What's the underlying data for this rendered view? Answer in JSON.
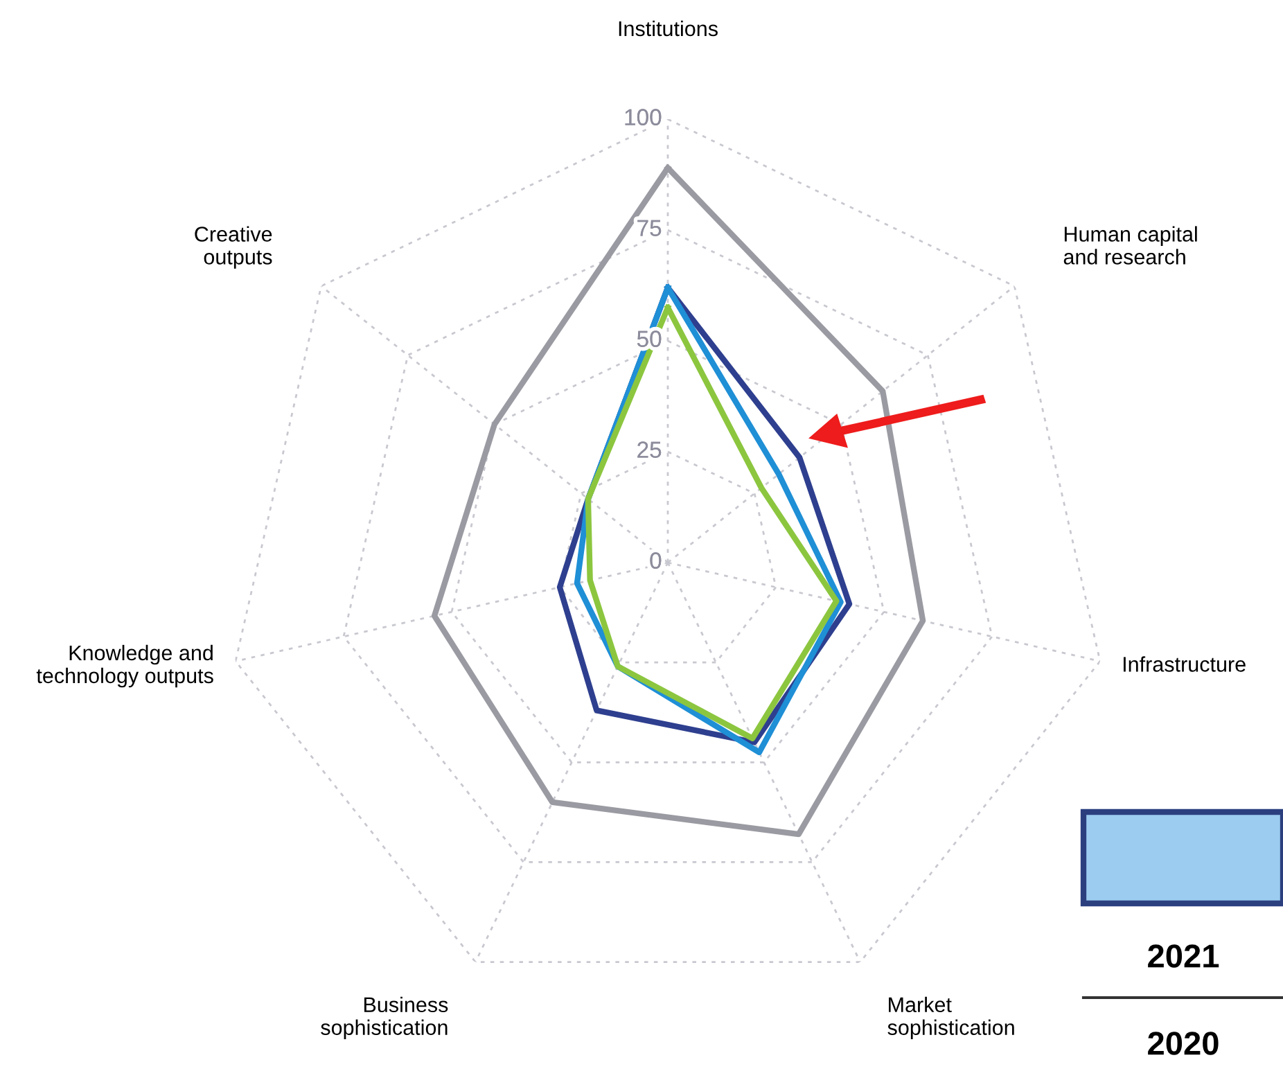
{
  "chart_data": {
    "type": "radar",
    "categories": [
      "Institutions",
      "Human capital\nand research",
      "Infrastructure",
      "Market\nsophistication",
      "Business\nsophistication",
      "Knowledge and\ntechnology outputs",
      "Creative\noutputs"
    ],
    "series": [
      {
        "color": "#9a9aa2",
        "values": [
          89,
          62,
          59,
          68,
          60,
          54,
          50
        ]
      },
      {
        "color": "#2e3f8f",
        "values": [
          62,
          38,
          42,
          45,
          37,
          25,
          23
        ]
      },
      {
        "color": "#1f8fd6",
        "values": [
          62,
          32,
          40,
          47.5,
          26,
          21,
          23
        ]
      },
      {
        "color": "#8cc63f",
        "values": [
          57.5,
          27,
          39,
          44,
          26,
          18,
          23
        ]
      }
    ],
    "ylim": [
      0,
      100
    ],
    "yticks": [
      0,
      25,
      50,
      75,
      100
    ],
    "grid": true,
    "legend": false,
    "marker": "none",
    "line_style": "solid",
    "annotations": [
      "2021",
      "2020"
    ]
  }
}
